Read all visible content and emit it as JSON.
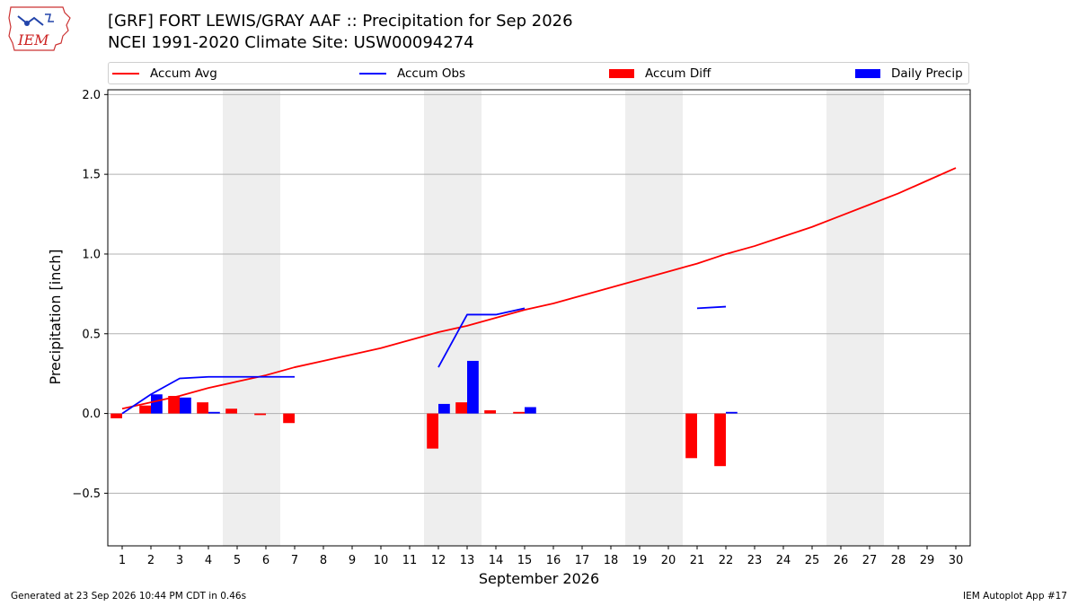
{
  "header": {
    "title_line1": "[GRF] FORT LEWIS/GRAY AAF :: Precipitation for Sep 2026",
    "title_line2": "NCEI 1991-2020 Climate Site: USW00094274",
    "logo_text": "IEM"
  },
  "legend": {
    "accum_avg": "Accum Avg",
    "accum_obs": "Accum Obs",
    "accum_diff": "Accum Diff",
    "daily_precip": "Daily Precip"
  },
  "colors": {
    "accum_avg": "#ff0000",
    "accum_obs": "#0000ff",
    "accum_diff": "#ff0000",
    "daily_precip": "#0000ff",
    "weekend_shade": "#eeeeee",
    "grid": "#b0b0b0"
  },
  "footer": {
    "left": "Generated at 23 Sep 2026 10:44 PM CDT in 0.46s",
    "right": "IEM Autoplot App #17"
  },
  "chart_data": {
    "type": "bar",
    "xlabel": "September 2026",
    "ylabel": "Precipitation [inch]",
    "xlim": [
      0.5,
      30.5
    ],
    "ylim": [
      -0.83,
      2.03
    ],
    "yticks": [
      -0.5,
      0.0,
      0.5,
      1.0,
      1.5,
      2.0
    ],
    "ytick_labels": [
      "−0.5",
      "0.0",
      "0.5",
      "1.0",
      "1.5",
      "2.0"
    ],
    "x": [
      1,
      2,
      3,
      4,
      5,
      6,
      7,
      8,
      9,
      10,
      11,
      12,
      13,
      14,
      15,
      16,
      17,
      18,
      19,
      20,
      21,
      22,
      23,
      24,
      25,
      26,
      27,
      28,
      29,
      30
    ],
    "grid": "horizontal",
    "legend_position": "top",
    "weekend_shading": [
      [
        5,
        6
      ],
      [
        12,
        13
      ],
      [
        19,
        20
      ],
      [
        26,
        27
      ]
    ],
    "series": [
      {
        "name": "Accum Avg",
        "kind": "line",
        "values": [
          0.03,
          0.07,
          0.11,
          0.16,
          0.2,
          0.24,
          0.29,
          0.33,
          0.37,
          0.41,
          0.46,
          0.51,
          0.55,
          0.6,
          0.65,
          0.69,
          0.74,
          0.79,
          0.84,
          0.89,
          0.94,
          1.0,
          1.05,
          1.11,
          1.17,
          1.24,
          1.31,
          1.38,
          1.46,
          1.54
        ]
      },
      {
        "name": "Accum Obs",
        "kind": "line",
        "values": [
          0.0,
          0.12,
          0.22,
          0.23,
          0.23,
          0.23,
          0.23,
          null,
          null,
          null,
          null,
          0.29,
          0.62,
          0.62,
          0.66,
          null,
          null,
          null,
          null,
          null,
          0.66,
          0.67,
          null,
          null,
          null,
          null,
          null,
          null,
          null,
          null
        ]
      },
      {
        "name": "Accum Diff",
        "kind": "bar",
        "values": [
          -0.03,
          0.05,
          0.11,
          0.07,
          0.03,
          -0.01,
          -0.06,
          null,
          null,
          null,
          null,
          -0.22,
          0.07,
          0.02,
          0.01,
          null,
          null,
          null,
          null,
          null,
          -0.28,
          -0.33,
          null,
          null,
          null,
          null,
          null,
          null,
          null,
          null
        ]
      },
      {
        "name": "Daily Precip",
        "kind": "bar",
        "values": [
          0.0,
          0.12,
          0.1,
          0.01,
          0.0,
          0.0,
          0.0,
          null,
          null,
          null,
          null,
          0.06,
          0.33,
          0.0,
          0.04,
          null,
          null,
          null,
          null,
          null,
          0.0,
          0.01,
          null,
          null,
          null,
          null,
          null,
          null,
          null,
          null
        ]
      }
    ]
  }
}
